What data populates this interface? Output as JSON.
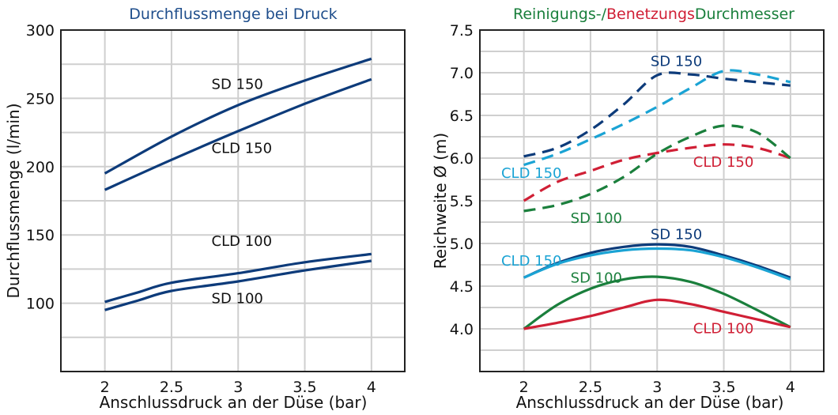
{
  "colors": {
    "dark_blue": "#0d3b7a",
    "light_blue": "#1aa3d4",
    "red": "#d01f35",
    "green": "#1a7f3c",
    "title_blue": "#1f4e8c"
  },
  "chart_data": [
    {
      "type": "line",
      "title": "Durchflussmenge bei Druck",
      "xlabel": "Anschlussdruck an der Düse (bar)",
      "ylabel": "Durchflussmenge (l/min)",
      "xlim": [
        1.67,
        4.25
      ],
      "ylim": [
        50,
        300
      ],
      "xticks": [
        "2",
        "2.5",
        "3",
        "3.5",
        "4"
      ],
      "yticks": [
        "100",
        "150",
        "200",
        "250",
        "300"
      ],
      "grid": true,
      "series": [
        {
          "label": "SD 150",
          "color": "dark_blue",
          "dashed": false,
          "x": [
            2,
            2.5,
            3,
            3.5,
            4
          ],
          "y": [
            195,
            222,
            245,
            263,
            279
          ]
        },
        {
          "label": "CLD 150",
          "color": "dark_blue",
          "dashed": false,
          "x": [
            2,
            2.5,
            3,
            3.5,
            4
          ],
          "y": [
            183,
            205,
            226,
            246,
            264
          ]
        },
        {
          "label": "CLD 100",
          "color": "dark_blue",
          "dashed": false,
          "x": [
            2,
            2.25,
            2.5,
            3,
            3.5,
            4
          ],
          "y": [
            101,
            108,
            115,
            122,
            130,
            136
          ]
        },
        {
          "label": "SD 100",
          "color": "dark_blue",
          "dashed": false,
          "x": [
            2,
            2.25,
            2.5,
            3,
            3.5,
            4
          ],
          "y": [
            95,
            102,
            109,
            116,
            124,
            131
          ]
        }
      ],
      "annotations": [
        {
          "text": "SD 150",
          "x": 2.8,
          "y": 257
        },
        {
          "text": "CLD 150",
          "x": 2.8,
          "y": 210
        },
        {
          "text": "CLD 100",
          "x": 2.8,
          "y": 142
        },
        {
          "text": "SD 100",
          "x": 2.8,
          "y": 100
        }
      ]
    },
    {
      "type": "line",
      "title_parts": [
        {
          "text": "Reinigungs-/",
          "color": "green"
        },
        {
          "text": "Benetzungs",
          "color": "red"
        },
        {
          "text": "Durchmesser",
          "color": "green"
        }
      ],
      "xlabel": "Anschlussdruck an der Düse (bar)",
      "ylabel": "Reichweite Ø (m)",
      "xlim": [
        1.67,
        4.25
      ],
      "ylim": [
        3.5,
        7.5
      ],
      "xticks": [
        "2",
        "2.5",
        "3",
        "3.5",
        "4"
      ],
      "yticks": [
        "4.0",
        "4.5",
        "5.0",
        "5.5",
        "6.0",
        "6.5",
        "7.0",
        "7.5"
      ],
      "grid": true,
      "series": [
        {
          "label": "SD 150",
          "color": "dark_blue",
          "dashed": true,
          "x": [
            2,
            2.25,
            2.5,
            2.75,
            3,
            3.25,
            3.5,
            3.75,
            4
          ],
          "y": [
            6.02,
            6.12,
            6.33,
            6.63,
            6.97,
            6.98,
            6.93,
            6.89,
            6.85
          ]
        },
        {
          "label": "CLD 150",
          "color": "light_blue",
          "dashed": true,
          "x": [
            2,
            2.25,
            2.5,
            2.75,
            3,
            3.25,
            3.5,
            3.75,
            4
          ],
          "y": [
            5.92,
            6.05,
            6.22,
            6.4,
            6.6,
            6.82,
            7.02,
            6.98,
            6.89
          ]
        },
        {
          "label": "CLD 150",
          "color": "red",
          "dashed": true,
          "x": [
            2,
            2.25,
            2.5,
            2.75,
            3,
            3.25,
            3.5,
            3.75,
            4
          ],
          "y": [
            5.5,
            5.72,
            5.85,
            5.98,
            6.06,
            6.12,
            6.16,
            6.12,
            6.0
          ]
        },
        {
          "label": "SD 100",
          "color": "green",
          "dashed": true,
          "x": [
            2,
            2.25,
            2.5,
            2.75,
            3,
            3.25,
            3.5,
            3.75,
            4
          ],
          "y": [
            5.38,
            5.45,
            5.58,
            5.78,
            6.05,
            6.25,
            6.38,
            6.3,
            6.0
          ]
        },
        {
          "label": "SD 150",
          "color": "dark_blue",
          "dashed": false,
          "x": [
            2,
            2.25,
            2.5,
            2.75,
            3,
            3.25,
            3.5,
            3.75,
            4
          ],
          "y": [
            4.6,
            4.77,
            4.89,
            4.96,
            4.99,
            4.96,
            4.86,
            4.74,
            4.6
          ]
        },
        {
          "label": "CLD 150",
          "color": "light_blue",
          "dashed": false,
          "x": [
            2,
            2.25,
            2.5,
            2.75,
            3,
            3.25,
            3.5,
            3.75,
            4
          ],
          "y": [
            4.6,
            4.76,
            4.86,
            4.92,
            4.94,
            4.92,
            4.84,
            4.72,
            4.58
          ]
        },
        {
          "label": "SD 100",
          "color": "green",
          "dashed": false,
          "x": [
            2,
            2.25,
            2.5,
            2.75,
            3,
            3.25,
            3.5,
            3.75,
            4
          ],
          "y": [
            4.0,
            4.28,
            4.47,
            4.58,
            4.61,
            4.55,
            4.41,
            4.22,
            4.02
          ]
        },
        {
          "label": "CLD 100",
          "color": "red",
          "dashed": false,
          "x": [
            2,
            2.25,
            2.5,
            2.75,
            3,
            3.25,
            3.5,
            3.75,
            4
          ],
          "y": [
            4.0,
            4.07,
            4.15,
            4.25,
            4.34,
            4.29,
            4.2,
            4.11,
            4.02
          ]
        }
      ],
      "annotations": [
        {
          "text": "SD 150",
          "x": 2.95,
          "y": 7.08,
          "color": "dark_blue"
        },
        {
          "text": "CLD 150",
          "x": 1.83,
          "y": 5.77,
          "color": "light_blue"
        },
        {
          "text": "CLD 150",
          "x": 3.27,
          "y": 5.9,
          "color": "red"
        },
        {
          "text": "SD 100",
          "x": 2.35,
          "y": 5.24,
          "color": "green"
        },
        {
          "text": "SD 150",
          "x": 2.95,
          "y": 5.05,
          "color": "dark_blue"
        },
        {
          "text": "CLD 150",
          "x": 1.83,
          "y": 4.74,
          "color": "light_blue"
        },
        {
          "text": "SD 100",
          "x": 2.35,
          "y": 4.54,
          "color": "green"
        },
        {
          "text": "CLD 100",
          "x": 3.27,
          "y": 3.95,
          "color": "red"
        }
      ]
    }
  ]
}
